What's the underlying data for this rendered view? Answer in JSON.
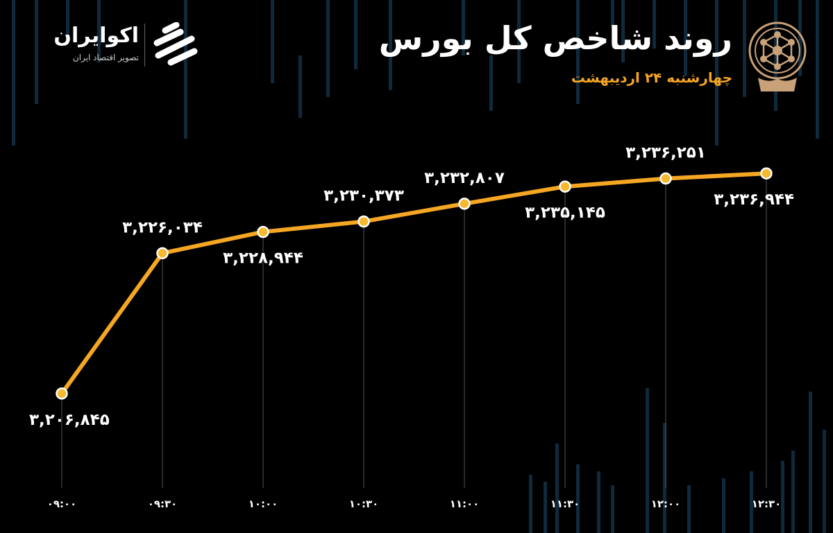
{
  "header": {
    "title": "روند شاخص کل بورس",
    "subtitle": "چهارشنبه ۲۴ اردیبهشت"
  },
  "brand": {
    "name": "اکوایران",
    "tagline": "تصویر اقتصاد ایران"
  },
  "colors": {
    "background": "#000000",
    "line": "#F5A623",
    "subtitle": "#F5A623",
    "marker_fill": "#F5B82E",
    "marker_stroke": "#ffffff",
    "guides": "#555555",
    "bg_bars": "#0f2a3c",
    "emblem": "#C8A178"
  },
  "chart_data": {
    "type": "line",
    "title": "روند شاخص کل بورس",
    "x": [
      "۰۹:۰۰",
      "۰۹:۳۰",
      "۱۰:۰۰",
      "۱۰:۳۰",
      "۱۱:۰۰",
      "۱۱:۳۰",
      "۱۲:۰۰",
      "۱۲:۳۰"
    ],
    "values": [
      3206845,
      3226034,
      3228944,
      3230373,
      3232807,
      3235145,
      3236251,
      3236944
    ],
    "data_labels": [
      "۳,۲۰۶,۸۴۵",
      "۳,۲۲۶,۰۳۴",
      "۳,۲۲۸,۹۴۴",
      "۳,۲۳۰,۳۷۳",
      "۳,۲۳۲,۸۰۷",
      "۳,۲۳۵,۱۴۵",
      "۳,۲۳۶,۲۵۱",
      "۳,۲۳۶,۹۴۴"
    ],
    "label_positions": [
      "below",
      "above",
      "below",
      "above",
      "above",
      "below",
      "above",
      "below"
    ],
    "xlabel": "",
    "ylabel": "",
    "ylim": [
      3200000,
      3240000
    ],
    "grid": false,
    "legend": "none"
  }
}
